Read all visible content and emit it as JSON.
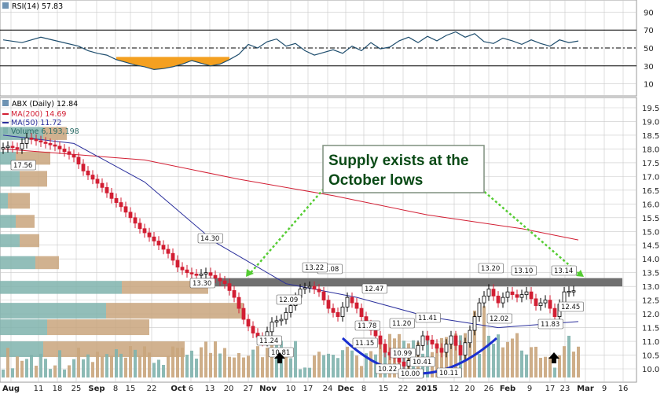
{
  "colors": {
    "price": "#000000",
    "ma200": "#d21e33",
    "ma50": "#2a2f9c",
    "volume_up": "#7fb3ad",
    "volume_down": "#c9a57c",
    "rsi_line": "#1f4e6e",
    "rsi_fill": "#f4a020",
    "supply_band": "#707070",
    "callout_border": "#7f8f7f",
    "callout_arrow": "#55cc33",
    "bowl": "#1a2fd0",
    "signal_arrow": "#000000",
    "grid": "#c9c9c9",
    "background": "#ffffff"
  },
  "rsi_panel": {
    "legend": "RSI(14) 57.83",
    "icon": "rsi-panel-icon",
    "ticks": [
      "90",
      "70",
      "50",
      "30",
      "10"
    ],
    "levels": [
      70,
      50,
      30
    ]
  },
  "price_panel": {
    "legend": {
      "title": "ABX (Daily) 12.84",
      "ma200": "MA(200) 14.69",
      "ma50": "MA(50) 11.72",
      "volume": "Volume 6,193,198"
    },
    "y_ticks": [
      "19.5",
      "19.0",
      "18.5",
      "18.0",
      "17.5",
      "17.0",
      "16.5",
      "16.0",
      "15.5",
      "15.0",
      "14.5",
      "14.0",
      "13.5",
      "13.0",
      "12.5",
      "12.0",
      "11.5",
      "11.0",
      "10.5",
      "10.0"
    ],
    "x_ticks": [
      "Aug",
      "11",
      "18",
      "25",
      "Sep",
      "8",
      "15",
      "22",
      "Oct",
      "6",
      "13",
      "20",
      "27",
      "Nov",
      "10",
      "17",
      "24",
      "Dec",
      "8",
      "15",
      "22",
      "2015",
      "12",
      "20",
      "26",
      "Feb",
      "9",
      "17",
      "23",
      "Mar",
      "9",
      "16"
    ],
    "annotation": {
      "callout": [
        "Supply exists at the",
        "October lows"
      ]
    },
    "data_labels": [
      "17.56",
      "14.30",
      "13.30",
      "13.08",
      "13.22",
      "12.09",
      "11.24",
      "10.81",
      "12.47",
      "11.78",
      "11.15",
      "11.20",
      "10.22",
      "10.99",
      "10.00",
      "11.41",
      "10.41",
      "10.11",
      "13.20",
      "12.02",
      "13.10",
      "13.14",
      "11.83",
      "12.45"
    ]
  },
  "chart_data": {
    "type": "candlestick",
    "ticker": "ABX",
    "period": "Daily",
    "last_price": 12.84,
    "ylim": [
      9.8,
      19.7
    ],
    "x_dates": [
      "Aug",
      "11",
      "18",
      "25",
      "Sep",
      "8",
      "15",
      "22",
      "Oct",
      "6",
      "13",
      "20",
      "27",
      "Nov",
      "10",
      "17",
      "24",
      "Dec",
      "8",
      "15",
      "22",
      "2015",
      "12",
      "20",
      "26",
      "Feb",
      "9",
      "17",
      "23",
      "Mar",
      "9",
      "16"
    ],
    "close_path": [
      [
        0,
        18.0
      ],
      [
        2,
        18.1
      ],
      [
        4,
        18.0
      ],
      [
        6,
        18.4
      ],
      [
        8,
        18.3
      ],
      [
        10,
        18.2
      ],
      [
        12,
        18.1
      ],
      [
        14,
        17.9
      ],
      [
        16,
        17.7
      ],
      [
        18,
        17.2
      ],
      [
        20,
        16.9
      ],
      [
        22,
        16.6
      ],
      [
        24,
        16.2
      ],
      [
        26,
        15.9
      ],
      [
        28,
        15.5
      ],
      [
        30,
        15.1
      ],
      [
        32,
        14.8
      ],
      [
        34,
        14.5
      ],
      [
        36,
        14.2
      ],
      [
        38,
        13.7
      ],
      [
        40,
        13.5
      ],
      [
        42,
        13.4
      ],
      [
        44,
        13.5
      ],
      [
        46,
        13.3
      ],
      [
        48,
        13.1
      ],
      [
        50,
        12.6
      ],
      [
        52,
        11.8
      ],
      [
        54,
        11.3
      ],
      [
        56,
        11.0
      ],
      [
        58,
        11.7
      ],
      [
        60,
        11.8
      ],
      [
        62,
        12.3
      ],
      [
        64,
        12.9
      ],
      [
        66,
        13.0
      ],
      [
        68,
        12.8
      ],
      [
        70,
        12.2
      ],
      [
        72,
        11.9
      ],
      [
        74,
        12.6
      ],
      [
        76,
        12.2
      ],
      [
        78,
        11.6
      ],
      [
        80,
        11.2
      ],
      [
        82,
        10.6
      ],
      [
        84,
        10.4
      ],
      [
        86,
        10.1
      ],
      [
        88,
        10.5
      ],
      [
        90,
        11.2
      ],
      [
        92,
        10.9
      ],
      [
        94,
        10.6
      ],
      [
        96,
        11.2
      ],
      [
        98,
        10.5
      ],
      [
        100,
        11.4
      ],
      [
        102,
        12.4
      ],
      [
        104,
        12.9
      ],
      [
        106,
        12.4
      ],
      [
        108,
        12.8
      ],
      [
        110,
        12.6
      ],
      [
        112,
        12.8
      ],
      [
        114,
        12.3
      ],
      [
        116,
        12.5
      ],
      [
        118,
        11.9
      ],
      [
        120,
        12.8
      ],
      [
        122,
        12.84
      ]
    ],
    "ma200": [
      [
        0,
        18.0
      ],
      [
        30,
        17.6
      ],
      [
        50,
        16.9
      ],
      [
        70,
        16.3
      ],
      [
        90,
        15.6
      ],
      [
        110,
        15.1
      ],
      [
        122,
        14.69
      ]
    ],
    "ma50": [
      [
        0,
        18.5
      ],
      [
        15,
        18.2
      ],
      [
        30,
        16.8
      ],
      [
        45,
        14.6
      ],
      [
        60,
        13.1
      ],
      [
        75,
        12.6
      ],
      [
        90,
        11.9
      ],
      [
        105,
        11.5
      ],
      [
        122,
        11.72
      ]
    ],
    "supply_band": [
      13.0,
      13.3
    ],
    "volume_last": "6,193,198",
    "rsi_path": [
      [
        0,
        59
      ],
      [
        4,
        56
      ],
      [
        8,
        62
      ],
      [
        12,
        57
      ],
      [
        16,
        52
      ],
      [
        18,
        47
      ],
      [
        20,
        44
      ],
      [
        22,
        42
      ],
      [
        24,
        37
      ],
      [
        26,
        34
      ],
      [
        28,
        31
      ],
      [
        30,
        29
      ],
      [
        32,
        26
      ],
      [
        34,
        27
      ],
      [
        36,
        29
      ],
      [
        38,
        32
      ],
      [
        40,
        36
      ],
      [
        42,
        33
      ],
      [
        44,
        30
      ],
      [
        46,
        32
      ],
      [
        48,
        37
      ],
      [
        50,
        43
      ],
      [
        52,
        54
      ],
      [
        54,
        50
      ],
      [
        56,
        57
      ],
      [
        58,
        60
      ],
      [
        60,
        52
      ],
      [
        62,
        55
      ],
      [
        64,
        47
      ],
      [
        66,
        42
      ],
      [
        68,
        45
      ],
      [
        70,
        48
      ],
      [
        72,
        44
      ],
      [
        74,
        52
      ],
      [
        76,
        47
      ],
      [
        78,
        56
      ],
      [
        80,
        49
      ],
      [
        82,
        51
      ],
      [
        84,
        58
      ],
      [
        86,
        62
      ],
      [
        88,
        56
      ],
      [
        90,
        63
      ],
      [
        92,
        58
      ],
      [
        94,
        64
      ],
      [
        96,
        68
      ],
      [
        98,
        62
      ],
      [
        100,
        66
      ],
      [
        102,
        57
      ],
      [
        104,
        55
      ],
      [
        106,
        61
      ],
      [
        108,
        58
      ],
      [
        110,
        54
      ],
      [
        112,
        59
      ],
      [
        114,
        55
      ],
      [
        116,
        52
      ],
      [
        118,
        59
      ],
      [
        120,
        56
      ],
      [
        122,
        57.83
      ]
    ],
    "rsi_last": 57.83
  }
}
